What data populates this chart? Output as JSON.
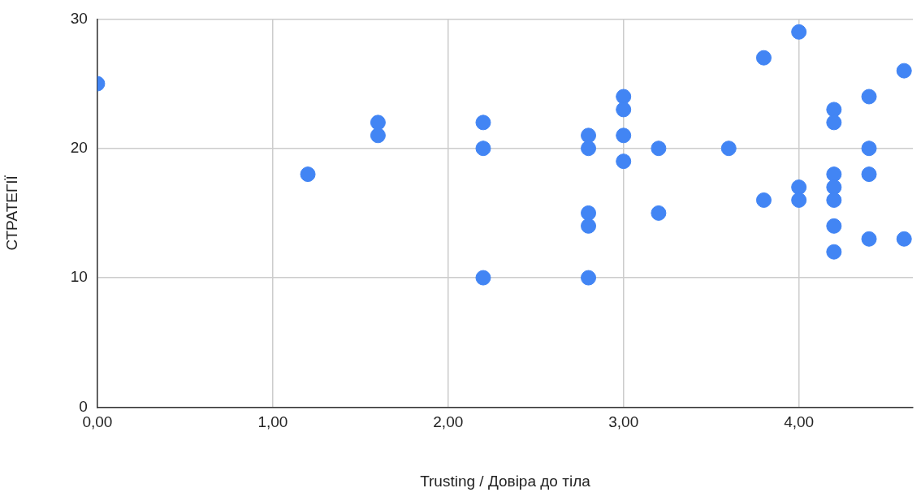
{
  "chart_data": {
    "type": "scatter",
    "xlabel": "Trusting / Довіра до тіла",
    "ylabel": "СТРАТЕГІЇ",
    "series": [
      {
        "color": "#4285f4",
        "x": [
          0,
          1.2,
          1.6,
          1.6,
          2.2,
          2.2,
          2.2,
          2.8,
          2.8,
          2.8,
          2.8,
          2.8,
          3.0,
          3.0,
          3.0,
          3.0,
          3.2,
          3.2,
          3.6,
          3.8,
          3.8,
          4.0,
          4.0,
          4.0,
          4.2,
          4.2,
          4.2,
          4.2,
          4.2,
          4.2,
          4.2,
          4.4,
          4.4,
          4.4,
          4.4,
          4.6,
          4.6
        ],
        "values": [
          25,
          18,
          22,
          21,
          22,
          20,
          10,
          21,
          20,
          15,
          14,
          10,
          24,
          23,
          21,
          19,
          20,
          15,
          20,
          27,
          16,
          29,
          17,
          16,
          23,
          22,
          18,
          17,
          16,
          14,
          12,
          24,
          20,
          18,
          13,
          26,
          13
        ]
      }
    ],
    "xlim": [
      0,
      4.65
    ],
    "xticks": [
      {
        "value": 0,
        "label": "0,00"
      },
      {
        "value": 1,
        "label": "1,00"
      },
      {
        "value": 2,
        "label": "2,00"
      },
      {
        "value": 3,
        "label": "3,00"
      },
      {
        "value": 4,
        "label": "4,00"
      }
    ],
    "ylim": [
      0,
      30
    ],
    "yticks": [
      0,
      10,
      20,
      30
    ],
    "grid": true,
    "legend": false,
    "marker": "circle"
  }
}
